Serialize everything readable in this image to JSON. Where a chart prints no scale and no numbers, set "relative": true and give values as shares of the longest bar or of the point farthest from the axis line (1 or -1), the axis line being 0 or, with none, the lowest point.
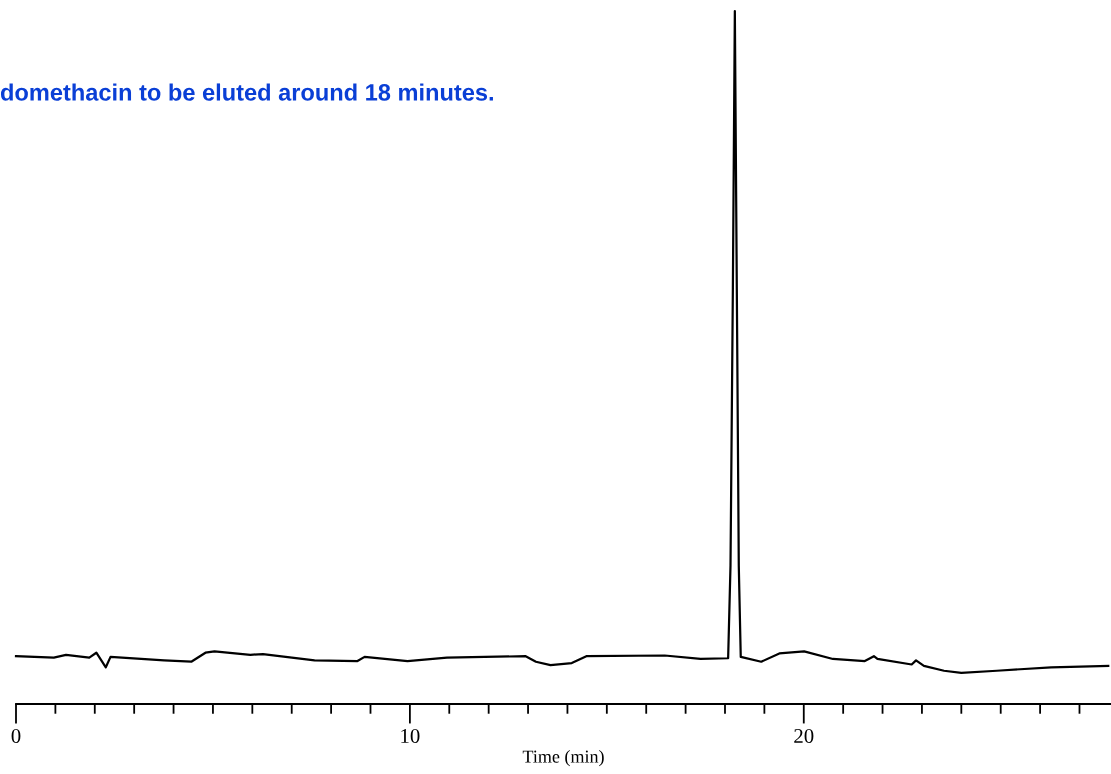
{
  "chart_data": {
    "type": "line",
    "relative": true,
    "xlabel": "Time (min)",
    "annotations": [
      "domethacin to be eluted around 18 minutes."
    ],
    "xlim": [
      0,
      27.8
    ],
    "xticks": [
      0,
      {
        "value": 1,
        "label": null
      },
      {
        "value": 2,
        "label": null
      },
      {
        "value": 3,
        "label": null
      },
      {
        "value": 4,
        "label": null
      },
      {
        "value": 5,
        "label": null
      },
      {
        "value": 6,
        "label": null
      },
      {
        "value": 7,
        "label": null
      },
      {
        "value": 8,
        "label": null
      },
      {
        "value": 9,
        "label": null
      },
      10,
      {
        "value": 11,
        "label": null
      },
      {
        "value": 12,
        "label": null
      },
      {
        "value": 13,
        "label": null
      },
      {
        "value": 14,
        "label": null
      },
      {
        "value": 15,
        "label": null
      },
      {
        "value": 16,
        "label": null
      },
      {
        "value": 17,
        "label": null
      },
      {
        "value": 18,
        "label": null
      },
      {
        "value": 19,
        "label": null
      },
      20,
      {
        "value": 21,
        "label": null
      },
      {
        "value": 22,
        "label": null
      },
      {
        "value": 23,
        "label": null
      },
      {
        "value": 24,
        "label": null
      },
      {
        "value": 25,
        "label": null
      },
      {
        "value": 26,
        "label": null
      },
      {
        "value": 27,
        "label": null
      }
    ],
    "grid": false,
    "legend": false,
    "marker": "none",
    "line_style": "solid",
    "series": [
      {
        "color": "#000000",
        "x": [
          0,
          0.96,
          1.27,
          1.86,
          2.04,
          2.28,
          2.4,
          3.76,
          4.45,
          4.81,
          5.04,
          5.95,
          6.27,
          7.58,
          8.67,
          8.85,
          9.94,
          10.94,
          12.94,
          13.2,
          13.57,
          14.11,
          14.48,
          16.47,
          17.38,
          18.08,
          18.14,
          18.2,
          18.25,
          18.3,
          18.35,
          18.4,
          18.92,
          19.38,
          20.01,
          20.74,
          21.55,
          21.78,
          21.87,
          22.74,
          22.85,
          23.05,
          23.56,
          24.0,
          24.9,
          26.28,
          27.73
        ],
        "values": [
          0.069,
          0.067,
          0.071,
          0.067,
          0.074,
          0.053,
          0.068,
          0.063,
          0.061,
          0.074,
          0.076,
          0.071,
          0.072,
          0.063,
          0.062,
          0.068,
          0.062,
          0.067,
          0.069,
          0.061,
          0.056,
          0.059,
          0.069,
          0.07,
          0.065,
          0.066,
          0.2,
          0.6,
          1,
          0.6,
          0.2,
          0.068,
          0.061,
          0.073,
          0.076,
          0.065,
          0.062,
          0.069,
          0.065,
          0.057,
          0.063,
          0.055,
          0.048,
          0.045,
          0.048,
          0.053,
          0.055
        ]
      }
    ]
  }
}
